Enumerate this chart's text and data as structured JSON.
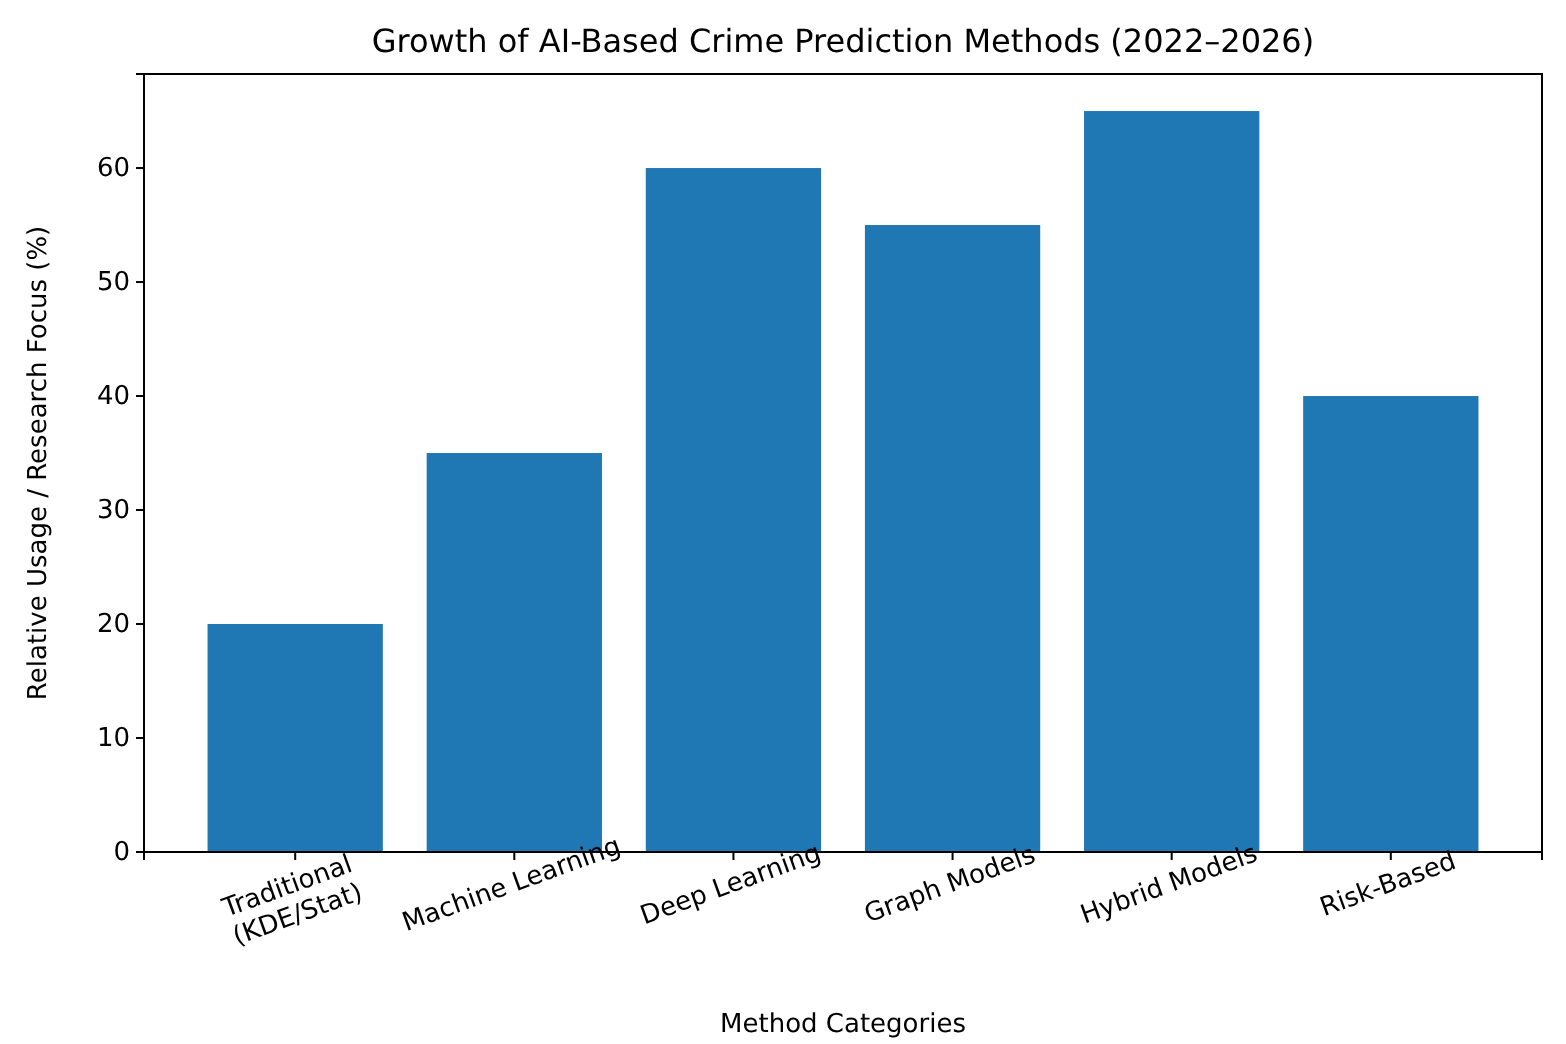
{
  "chart_data": {
    "type": "bar",
    "title": "Growth of AI-Based Crime Prediction Methods (2022–2026)",
    "xlabel": "Method Categories",
    "ylabel": "Relative Usage / Research Focus (%)",
    "categories": [
      "Traditional\n(KDE/Stat)",
      "Machine Learning",
      "Deep Learning",
      "Graph Models",
      "Hybrid Models",
      "Risk-Based"
    ],
    "values": [
      20,
      35,
      60,
      55,
      65,
      40
    ],
    "color": "#1f77b4",
    "ylim": [
      0,
      68.25
    ],
    "yticks": [
      0,
      10,
      20,
      30,
      40,
      50,
      60
    ],
    "grid": false
  }
}
